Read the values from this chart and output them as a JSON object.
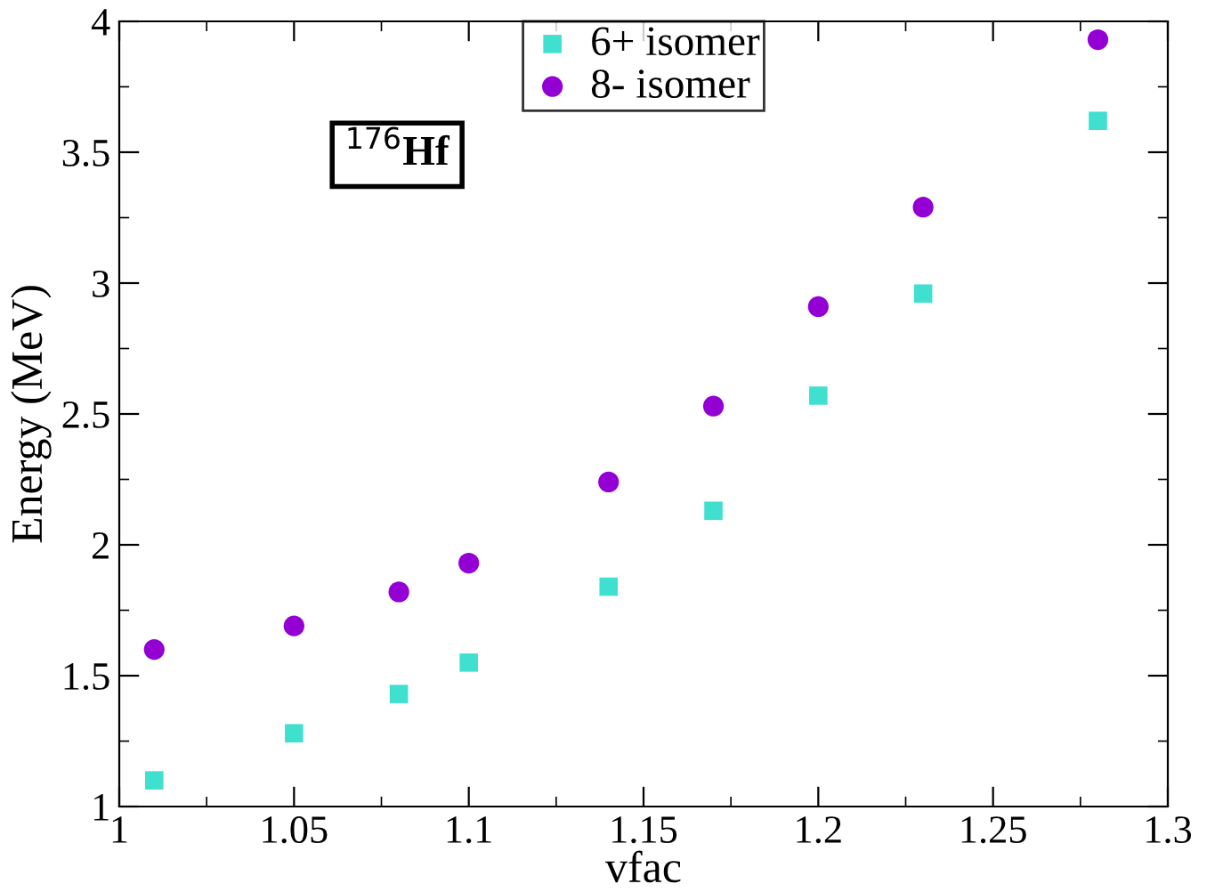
{
  "chart_data": {
    "type": "scatter",
    "xlabel": "vfac",
    "ylabel": "Energy (MeV)",
    "xlim": [
      1,
      1.3
    ],
    "xticks": [
      1,
      1.05,
      1.1,
      1.15,
      1.2,
      1.25,
      1.3
    ],
    "ylim": [
      1,
      4
    ],
    "yticks": [
      1,
      1.5,
      2,
      2.5,
      3,
      3.5,
      4
    ],
    "grid": false,
    "legend": "top",
    "annotations": [
      "$^{176}$Hf"
    ],
    "series": [
      {
        "name": "6+ isomer",
        "color": "#40e0d0",
        "marker": "square",
        "x": [
          1.01,
          1.05,
          1.08,
          1.1,
          1.14,
          1.17,
          1.2,
          1.23,
          1.28
        ],
        "values": [
          1.1,
          1.28,
          1.43,
          1.55,
          1.84,
          2.13,
          2.57,
          2.96,
          3.62
        ]
      },
      {
        "name": "8- isomer",
        "color": "#9400d3",
        "marker": "circle",
        "x": [
          1.01,
          1.05,
          1.08,
          1.1,
          1.14,
          1.17,
          1.2,
          1.23,
          1.28
        ],
        "values": [
          1.6,
          1.69,
          1.82,
          1.93,
          2.24,
          2.53,
          2.91,
          3.29,
          3.93
        ]
      }
    ]
  }
}
